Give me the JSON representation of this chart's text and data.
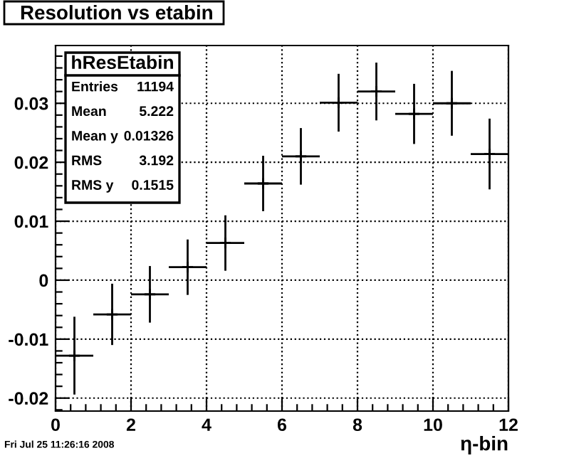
{
  "chart_data": {
    "type": "scatter",
    "title": "Resolution vs etabin",
    "xlabel": "η-bin",
    "x": [
      0.5,
      1.5,
      2.5,
      3.5,
      4.5,
      5.5,
      6.5,
      7.5,
      8.5,
      9.5,
      10.5,
      11.5
    ],
    "values": [
      -0.0128,
      -0.0058,
      -0.0024,
      0.0022,
      0.0063,
      0.0164,
      0.021,
      0.0301,
      0.032,
      0.0282,
      0.03,
      0.0214
    ],
    "errors": [
      0.0066,
      0.0052,
      0.0048,
      0.0047,
      0.0047,
      0.0047,
      0.0048,
      0.0049,
      0.0049,
      0.0051,
      0.0055,
      0.006
    ],
    "xerrors": [
      0.5,
      0.5,
      0.5,
      0.5,
      0.5,
      0.5,
      0.5,
      0.5,
      0.5,
      0.5,
      0.5,
      0.5
    ],
    "color": "#000000",
    "marker": "cross",
    "xlim": [
      0,
      12
    ],
    "xticks": [
      0,
      2,
      4,
      6,
      8,
      10,
      12
    ],
    "ylim": [
      -0.0222,
      0.0398
    ],
    "yticks": [
      -0.02,
      -0.01,
      0,
      0.01,
      0.02,
      0.03
    ],
    "grid": true,
    "annotations": [
      "hResEtabin",
      "Entries 11194",
      "Mean 5.222",
      "Mean y 0.01326",
      "RMS 3.192",
      "RMS y 0.1515",
      "Fri Jul 25 11:26:16 2008"
    ]
  }
}
